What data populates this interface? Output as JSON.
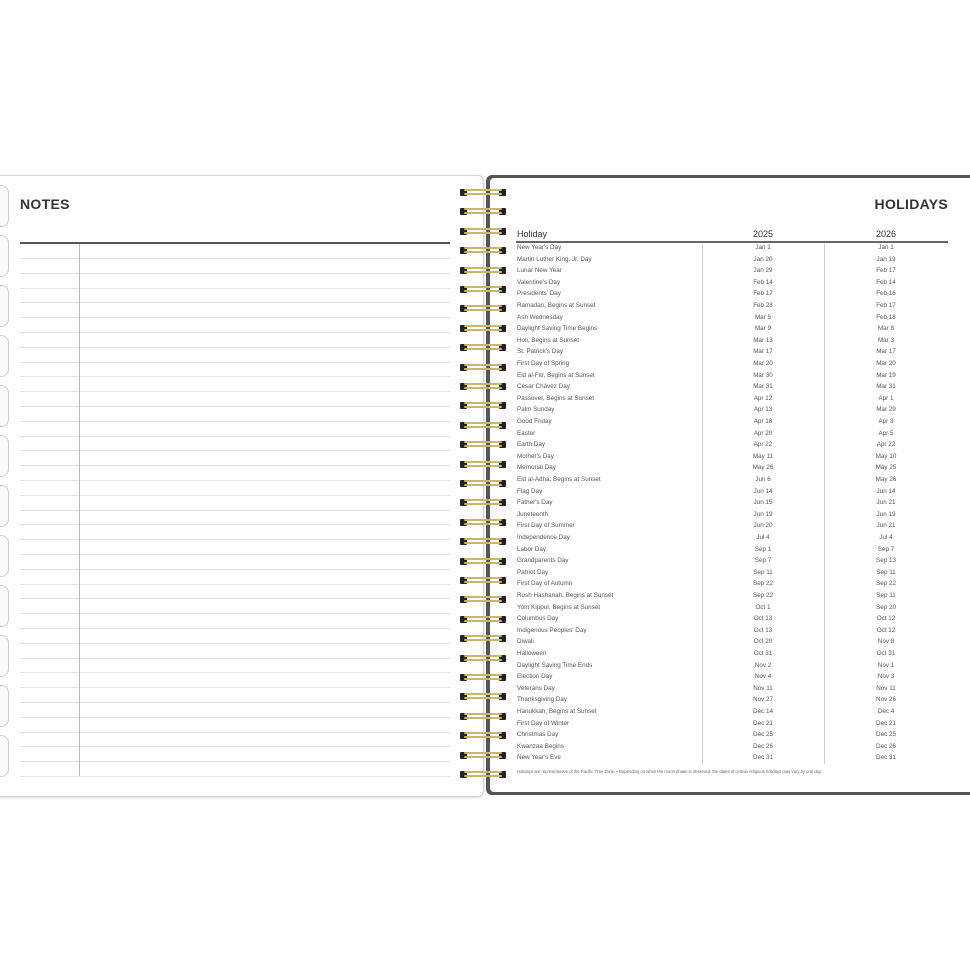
{
  "notes": {
    "title": "NOTES"
  },
  "holidays": {
    "title": "HOLIDAYS",
    "columns": [
      "Holiday",
      "2025",
      "2026"
    ],
    "rows": [
      [
        "New Year's Day",
        "Jan 1",
        "Jan 1"
      ],
      [
        "Martin Luther King, Jr. Day",
        "Jan 20",
        "Jan 19"
      ],
      [
        "Lunar New Year",
        "Jan 29",
        "Feb 17"
      ],
      [
        "Valentine's Day",
        "Feb 14",
        "Feb 14"
      ],
      [
        "Presidents' Day",
        "Feb 17",
        "Feb 16"
      ],
      [
        "Ramadan, Begins at Sunset",
        "Feb 28",
        "Feb 17"
      ],
      [
        "Ash Wednesday",
        "Mar 5",
        "Feb 18"
      ],
      [
        "Daylight Saving Time Begins",
        "Mar 9",
        "Mar 8"
      ],
      [
        "Holi, Begins at Sunset",
        "Mar 13",
        "Mar 3"
      ],
      [
        "St. Patrick's Day",
        "Mar 17",
        "Mar 17"
      ],
      [
        "First Day of Spring",
        "Mar 20",
        "Mar 20"
      ],
      [
        "Eid al-Fitr, Begins at Sunset",
        "Mar 30",
        "Mar 19"
      ],
      [
        "César Chávez Day",
        "Mar 31",
        "Mar 31"
      ],
      [
        "Passover, Begins at Sunset",
        "Apr 12",
        "Apr 1"
      ],
      [
        "Palm Sunday",
        "Apr 13",
        "Mar 29"
      ],
      [
        "Good Friday",
        "Apr 18",
        "Apr 3"
      ],
      [
        "Easter",
        "Apr 20",
        "Apr 5"
      ],
      [
        "Earth Day",
        "Apr 22",
        "Apr 22"
      ],
      [
        "Mother's Day",
        "May 11",
        "May 10"
      ],
      [
        "Memorial Day",
        "May 26",
        "May 25"
      ],
      [
        "Eid al-Adha, Begins at Sunset",
        "Jun 6",
        "May 26"
      ],
      [
        "Flag Day",
        "Jun 14",
        "Jun 14"
      ],
      [
        "Father's Day",
        "Jun 15",
        "Jun 21"
      ],
      [
        "Juneteenth",
        "Jun 19",
        "Jun 19"
      ],
      [
        "First Day of Summer",
        "Jun 20",
        "Jun 21"
      ],
      [
        "Independence Day",
        "Jul 4",
        "Jul 4"
      ],
      [
        "Labor Day",
        "Sep 1",
        "Sep 7"
      ],
      [
        "Grandparents Day",
        "Sep 7",
        "Sep 13"
      ],
      [
        "Patriot Day",
        "Sep 11",
        "Sep 11"
      ],
      [
        "First Day of Autumn",
        "Sep 22",
        "Sep 22"
      ],
      [
        "Rosh Hashanah, Begins at Sunset",
        "Sep 22",
        "Sep 11"
      ],
      [
        "Yom Kippur, Begins at Sunset",
        "Oct 1",
        "Sep 20"
      ],
      [
        "Columbus Day",
        "Oct 13",
        "Oct 12"
      ],
      [
        "Indigenous Peoples' Day",
        "Oct 13",
        "Oct 12"
      ],
      [
        "Diwali",
        "Oct 20",
        "Nov 8"
      ],
      [
        "Halloween",
        "Oct 31",
        "Oct 31"
      ],
      [
        "Daylight Saving Time Ends",
        "Nov 2",
        "Nov 1"
      ],
      [
        "Election Day",
        "Nov 4",
        "Nov 3"
      ],
      [
        "Veterans Day",
        "Nov 11",
        "Nov 11"
      ],
      [
        "Thanksgiving Day",
        "Nov 27",
        "Nov 26"
      ],
      [
        "Hanukkah, Begins at Sunset",
        "Dec 14",
        "Dec 4"
      ],
      [
        "First Day of Winter",
        "Dec 21",
        "Dec 21"
      ],
      [
        "Christmas Day",
        "Dec 25",
        "Dec 25"
      ],
      [
        "Kwanzaa Begins",
        "Dec 26",
        "Dec 26"
      ],
      [
        "New Year's Eve",
        "Dec 31",
        "Dec 31"
      ]
    ],
    "footnote": "Holidays are representative of the Pacific Time Zone.  •  Depending on when the moon phase is observed, the dates of certain religious holidays may vary by one day."
  },
  "colors": {
    "spiral": "#c9b66a",
    "cover": "#555555"
  }
}
